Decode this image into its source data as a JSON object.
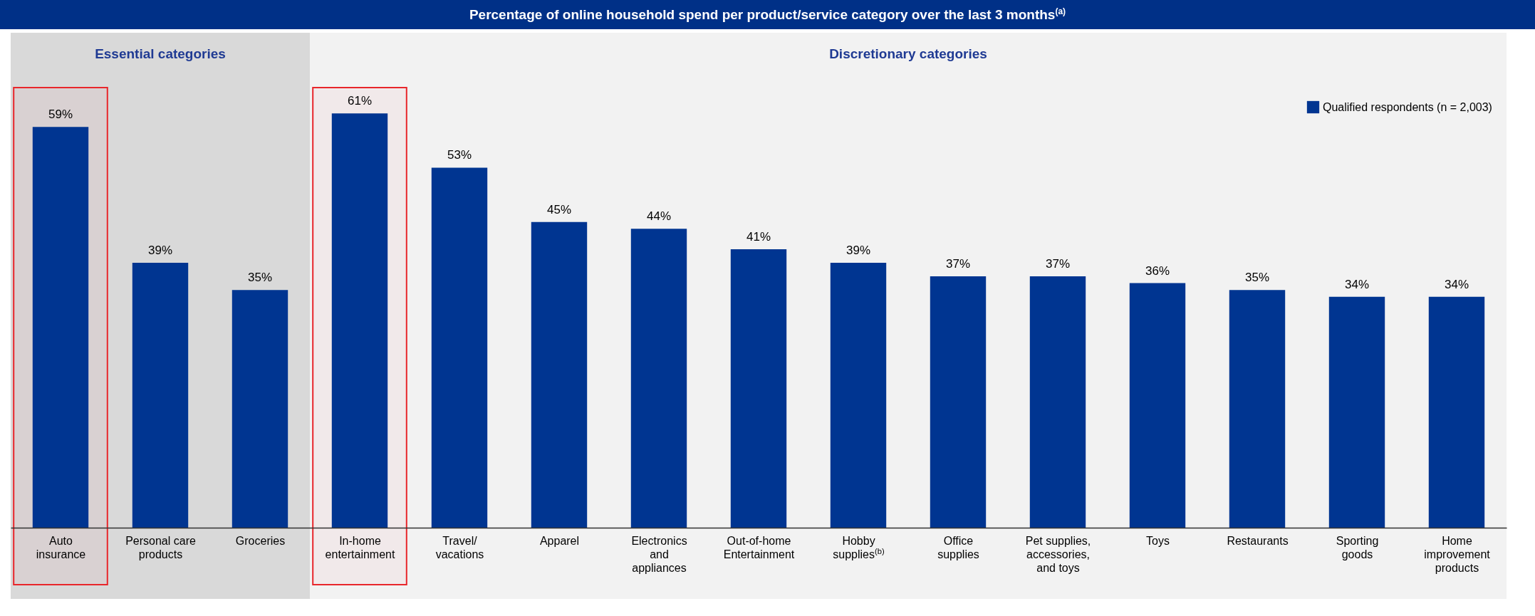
{
  "chart_data": {
    "type": "bar",
    "title": "Percentage of online household spend per product/service category over the last 3 months$^{(a)}$",
    "categories": [
      "Auto insurance",
      "Personal care products",
      "Groceries",
      "In-home entertainment",
      "Travel/vacations",
      "Apparel",
      "Electronics and appliances",
      "Out-of-home Entertainment",
      "Hobby supplies$^{(b)}$",
      "Office supplies",
      "Pet supplies, accessories, and toys",
      "Toys",
      "Restaurants",
      "Sporting goods",
      "Home improvement products"
    ],
    "series": [
      {
        "name": "Qualified respondents (n = 2,003)",
        "color": "#003591",
        "values": [
          59,
          39,
          35,
          61,
          53,
          45,
          44,
          41,
          39,
          37,
          37,
          36,
          35,
          34,
          34
        ],
        "value_labels": [
          "59%",
          "39%",
          "35%",
          "61%",
          "53%",
          "45%",
          "44%",
          "41%",
          "39%",
          "37%",
          "37%",
          "36%",
          "35%",
          "34%",
          "34%"
        ]
      }
    ],
    "bands": [
      {
        "axis": "x",
        "from": "Auto insurance",
        "to": "Groceries",
        "label": "Essential categories",
        "color": "#d9d9d9"
      },
      {
        "axis": "x",
        "from": "In-home entertainment",
        "to": "Home improvement products",
        "label": "Discretionary categories",
        "color": "#f2f2f2"
      },
      {
        "axis": "x",
        "from": "Auto insurance",
        "to": "Auto insurance",
        "color": "#e8262b"
      },
      {
        "axis": "x",
        "from": "In-home entertainment",
        "to": "In-home entertainment",
        "color": "#e8262b"
      }
    ],
    "legend": "top right"
  }
}
